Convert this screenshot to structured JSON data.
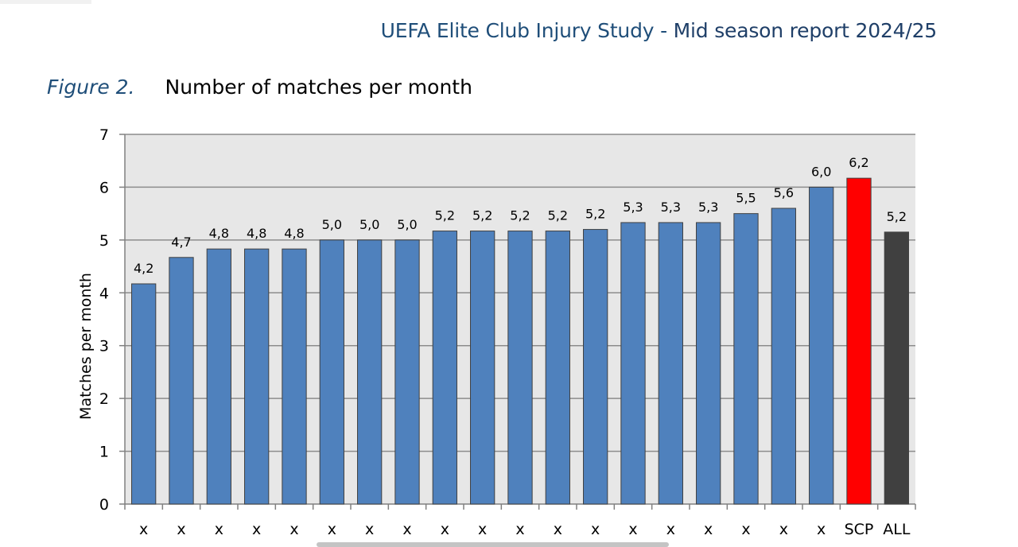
{
  "header": {
    "title_part1": "UEFA Elite Club Injury Study - ",
    "title_part2": "Mid season report 2024/25"
  },
  "figure": {
    "label": "Figure 2.",
    "title": "Number of matches per month"
  },
  "chart_data": {
    "type": "bar",
    "title": "Number of matches per month",
    "xlabel": "",
    "ylabel": "Matches per month",
    "ylim": [
      0,
      7
    ],
    "yticks": [
      0,
      1,
      2,
      3,
      4,
      5,
      6,
      7
    ],
    "grid": true,
    "categories": [
      "x",
      "x",
      "x",
      "x",
      "x",
      "x",
      "x",
      "x",
      "x",
      "x",
      "x",
      "x",
      "x",
      "x",
      "x",
      "x",
      "x",
      "x",
      "x",
      "SCP",
      "ALL"
    ],
    "values": [
      4.17,
      4.67,
      4.83,
      4.83,
      4.83,
      5.0,
      5.0,
      5.0,
      5.17,
      5.17,
      5.17,
      5.17,
      5.2,
      5.33,
      5.33,
      5.33,
      5.5,
      5.6,
      6.0,
      6.17,
      5.15
    ],
    "data_labels": [
      "4,2",
      "4,7",
      "4,8",
      "4,8",
      "4,8",
      "5,0",
      "5,0",
      "5,0",
      "5,2",
      "5,2",
      "5,2",
      "5,2",
      "5,2",
      "5,3",
      "5,3",
      "5,3",
      "5,5",
      "5,6",
      "6,0",
      "6,2",
      "5,2"
    ],
    "colors": {
      "default": "#4f81bd",
      "SCP": "#ff0000",
      "ALL": "#404040",
      "plot_background": "#e7e7e7",
      "gridline": "#8c8c8c"
    }
  }
}
